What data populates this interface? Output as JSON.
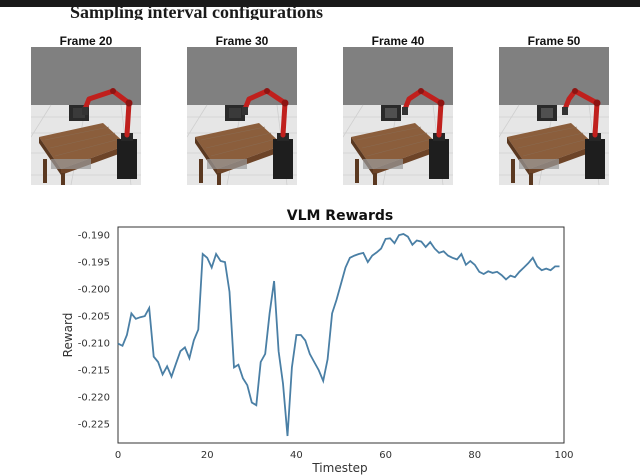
{
  "header_fragment": "Sampling interval configurations",
  "frames": [
    {
      "title": "Frame 20",
      "phase": 0
    },
    {
      "title": "Frame 30",
      "phase": 1
    },
    {
      "title": "Frame 40",
      "phase": 2
    },
    {
      "title": "Frame 50",
      "phase": 3
    }
  ],
  "colors": {
    "line": "#4a7fa5",
    "arm": "#c0201d",
    "floor_top": "#808080",
    "table": "#8b5e3c"
  },
  "chart_data": {
    "type": "line",
    "title": "VLM Rewards",
    "xlabel": "Timestep",
    "ylabel": "Reward",
    "xlim": [
      0,
      100
    ],
    "ylim": [
      -0.2285,
      -0.1885
    ],
    "xticks": [
      0,
      20,
      40,
      60,
      80,
      100
    ],
    "yticks": [
      -0.19,
      -0.195,
      -0.2,
      -0.205,
      -0.21,
      -0.215,
      -0.22,
      -0.225
    ],
    "ytick_labels": [
      "-0.190",
      "-0.195",
      "-0.200",
      "-0.205",
      "-0.210",
      "-0.215",
      "-0.220",
      "-0.225"
    ],
    "grid": false,
    "series": [
      {
        "x": [
          0,
          1,
          2,
          3,
          4,
          5,
          6,
          7,
          8,
          9,
          10,
          11,
          12,
          13,
          14,
          15,
          16,
          17,
          18,
          19,
          20,
          21,
          22,
          23,
          24,
          25,
          26,
          27,
          28,
          29,
          30,
          31,
          32,
          33,
          34,
          35,
          36,
          37,
          38,
          39,
          40,
          41,
          42,
          43,
          44,
          45,
          46,
          47,
          48,
          49,
          50,
          51,
          52,
          53,
          54,
          55,
          56,
          57,
          58,
          59,
          60,
          61,
          62,
          63,
          64,
          65,
          66,
          67,
          68,
          69,
          70,
          71,
          72,
          73,
          74,
          75,
          76,
          77,
          78,
          79,
          80,
          81,
          82,
          83,
          84,
          85,
          86,
          87,
          88,
          89,
          90,
          91,
          92,
          93,
          94,
          95,
          96,
          97,
          98,
          99
        ],
        "y": [
          -0.2101,
          -0.2105,
          -0.2085,
          -0.2045,
          -0.2055,
          -0.2052,
          -0.205,
          -0.2035,
          -0.2125,
          -0.2135,
          -0.2158,
          -0.2143,
          -0.2162,
          -0.2138,
          -0.2115,
          -0.2108,
          -0.2128,
          -0.2095,
          -0.2075,
          -0.1935,
          -0.1942,
          -0.196,
          -0.1935,
          -0.1948,
          -0.195,
          -0.2005,
          -0.2145,
          -0.214,
          -0.2165,
          -0.2178,
          -0.221,
          -0.2215,
          -0.2135,
          -0.212,
          -0.2045,
          -0.1985,
          -0.2115,
          -0.2175,
          -0.2272,
          -0.2145,
          -0.2085,
          -0.2085,
          -0.2095,
          -0.212,
          -0.2135,
          -0.215,
          -0.217,
          -0.213,
          -0.2045,
          -0.202,
          -0.199,
          -0.196,
          -0.1942,
          -0.1938,
          -0.1935,
          -0.1933,
          -0.195,
          -0.1938,
          -0.1932,
          -0.1925,
          -0.1907,
          -0.1906,
          -0.1915,
          -0.19,
          -0.1898,
          -0.1903,
          -0.1918,
          -0.191,
          -0.1912,
          -0.1922,
          -0.1913,
          -0.1925,
          -0.1933,
          -0.193,
          -0.1938,
          -0.1942,
          -0.1945,
          -0.1935,
          -0.1955,
          -0.1948,
          -0.1955,
          -0.1968,
          -0.1972,
          -0.1967,
          -0.197,
          -0.1968,
          -0.1974,
          -0.1982,
          -0.1975,
          -0.1978,
          -0.1968,
          -0.196,
          -0.1952,
          -0.1942,
          -0.1958,
          -0.1965,
          -0.1962,
          -0.1965,
          -0.1958,
          -0.1958
        ]
      }
    ]
  }
}
